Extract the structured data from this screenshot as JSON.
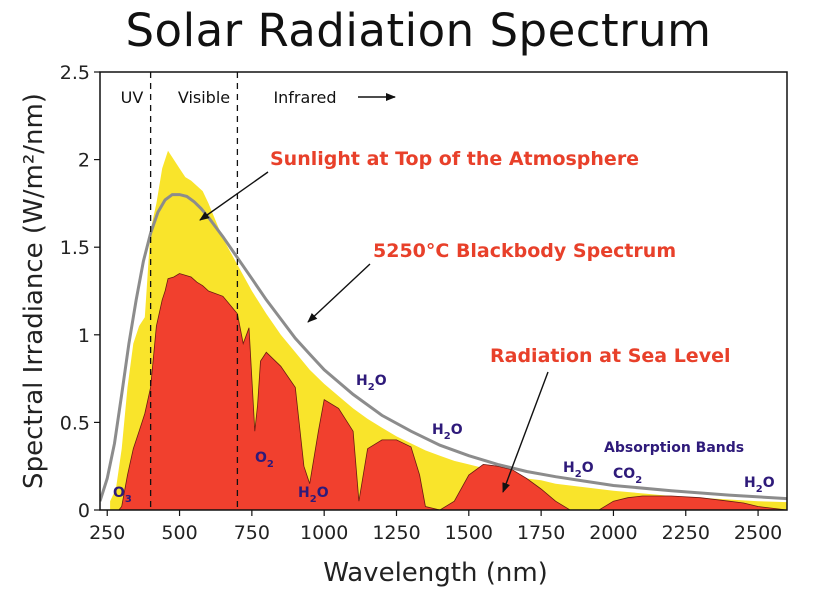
{
  "chart_data": {
    "type": "area",
    "title": "Solar Radiation Spectrum",
    "xlabel": "Wavelength (nm)",
    "ylabel": "Spectral Irradiance (W/m²/nm)",
    "xlim": [
      225,
      2600
    ],
    "ylim": [
      0,
      2.5
    ],
    "xticks": [
      250,
      500,
      750,
      1000,
      1250,
      1500,
      1750,
      2000,
      2250,
      2500
    ],
    "yticks": [
      0,
      0.5,
      1,
      1.5,
      2,
      2.5
    ],
    "ytick_labels": [
      "0",
      "0.5",
      "1",
      "1.5",
      "2",
      "2.5"
    ],
    "grid": false,
    "colors": {
      "top_of_atmosphere": "#f9e42b",
      "sea_level": "#f1402e",
      "blackbody": "#8c8c8c",
      "annotation": "#e8402a",
      "molecule": "#2e1a7a"
    },
    "regions": [
      {
        "label": "UV"
      },
      {
        "label": "Visible"
      },
      {
        "label": "Infrared"
      }
    ],
    "region_boundaries_nm": [
      400,
      700
    ],
    "series": [
      {
        "name": "Sunlight at Top of the Atmosphere",
        "x": [
          260,
          280,
          300,
          320,
          340,
          360,
          380,
          400,
          420,
          440,
          460,
          480,
          500,
          520,
          540,
          560,
          580,
          600,
          650,
          700,
          750,
          800,
          850,
          900,
          950,
          1000,
          1050,
          1100,
          1150,
          1200,
          1250,
          1300,
          1350,
          1400,
          1450,
          1500,
          1550,
          1600,
          1650,
          1700,
          1750,
          1800,
          1850,
          1900,
          1950,
          2000,
          2100,
          2200,
          2300,
          2400,
          2500,
          2600
        ],
        "y": [
          0.05,
          0.12,
          0.35,
          0.7,
          0.95,
          1.05,
          1.1,
          1.6,
          1.75,
          1.95,
          2.05,
          2.0,
          1.95,
          1.9,
          1.88,
          1.85,
          1.82,
          1.75,
          1.55,
          1.4,
          1.25,
          1.12,
          1.0,
          0.9,
          0.8,
          0.72,
          0.65,
          0.58,
          0.52,
          0.47,
          0.42,
          0.38,
          0.34,
          0.31,
          0.28,
          0.26,
          0.24,
          0.22,
          0.2,
          0.18,
          0.17,
          0.15,
          0.14,
          0.13,
          0.12,
          0.11,
          0.095,
          0.08,
          0.07,
          0.06,
          0.05,
          0.045
        ]
      },
      {
        "name": "Radiation at Sea Level",
        "x": [
          290,
          300,
          320,
          340,
          360,
          380,
          400,
          420,
          440,
          450,
          460,
          480,
          500,
          520,
          540,
          560,
          580,
          600,
          650,
          680,
          700,
          720,
          740,
          760,
          770,
          780,
          800,
          850,
          900,
          930,
          950,
          980,
          1000,
          1050,
          1100,
          1120,
          1150,
          1200,
          1250,
          1300,
          1330,
          1350,
          1400,
          1450,
          1500,
          1550,
          1600,
          1650,
          1700,
          1750,
          1800,
          1850,
          1900,
          1950,
          2000,
          2050,
          2100,
          2200,
          2300,
          2400,
          2450,
          2500,
          2600
        ],
        "y": [
          0,
          0.02,
          0.2,
          0.35,
          0.45,
          0.55,
          0.7,
          1.05,
          1.2,
          1.25,
          1.32,
          1.33,
          1.35,
          1.34,
          1.33,
          1.3,
          1.28,
          1.25,
          1.22,
          1.16,
          1.12,
          0.95,
          1.04,
          0.45,
          0.6,
          0.85,
          0.9,
          0.82,
          0.7,
          0.25,
          0.15,
          0.45,
          0.63,
          0.58,
          0.45,
          0.05,
          0.35,
          0.4,
          0.4,
          0.36,
          0.2,
          0.02,
          0,
          0.05,
          0.2,
          0.26,
          0.25,
          0.23,
          0.18,
          0.12,
          0.05,
          0,
          0,
          0,
          0.05,
          0.07,
          0.08,
          0.08,
          0.07,
          0.05,
          0.04,
          0.02,
          0
        ]
      },
      {
        "name": "5250°C Blackbody Spectrum",
        "x": [
          225,
          250,
          275,
          300,
          325,
          350,
          375,
          400,
          425,
          450,
          475,
          500,
          525,
          550,
          575,
          600,
          650,
          700,
          750,
          800,
          850,
          900,
          950,
          1000,
          1100,
          1200,
          1300,
          1400,
          1500,
          1600,
          1700,
          1800,
          1900,
          2000,
          2200,
          2400,
          2600
        ],
        "y": [
          0.05,
          0.18,
          0.38,
          0.66,
          0.95,
          1.2,
          1.42,
          1.58,
          1.7,
          1.77,
          1.8,
          1.8,
          1.79,
          1.76,
          1.72,
          1.67,
          1.56,
          1.44,
          1.32,
          1.2,
          1.09,
          0.98,
          0.89,
          0.8,
          0.66,
          0.54,
          0.45,
          0.37,
          0.31,
          0.26,
          0.22,
          0.19,
          0.165,
          0.14,
          0.11,
          0.085,
          0.065
        ]
      }
    ],
    "annotations": [
      {
        "text": "Sunlight at Top of the Atmosphere",
        "style": "red"
      },
      {
        "text": "5250°C Blackbody Spectrum",
        "style": "red"
      },
      {
        "text": "Radiation at Sea Level",
        "style": "red"
      },
      {
        "text": "Absorption Bands",
        "style": "molecule"
      }
    ],
    "molecules": [
      {
        "base": "O",
        "sub": "3"
      },
      {
        "base": "O",
        "sub": "2"
      },
      {
        "base": "H",
        "sub": "2",
        "tail": "O"
      },
      {
        "base": "H",
        "sub": "2",
        "tail": "O"
      },
      {
        "base": "H",
        "sub": "2",
        "tail": "O"
      },
      {
        "base": "H",
        "sub": "2",
        "tail": "O"
      },
      {
        "base": "CO",
        "sub": "2"
      },
      {
        "base": "H",
        "sub": "2",
        "tail": "O"
      }
    ]
  }
}
